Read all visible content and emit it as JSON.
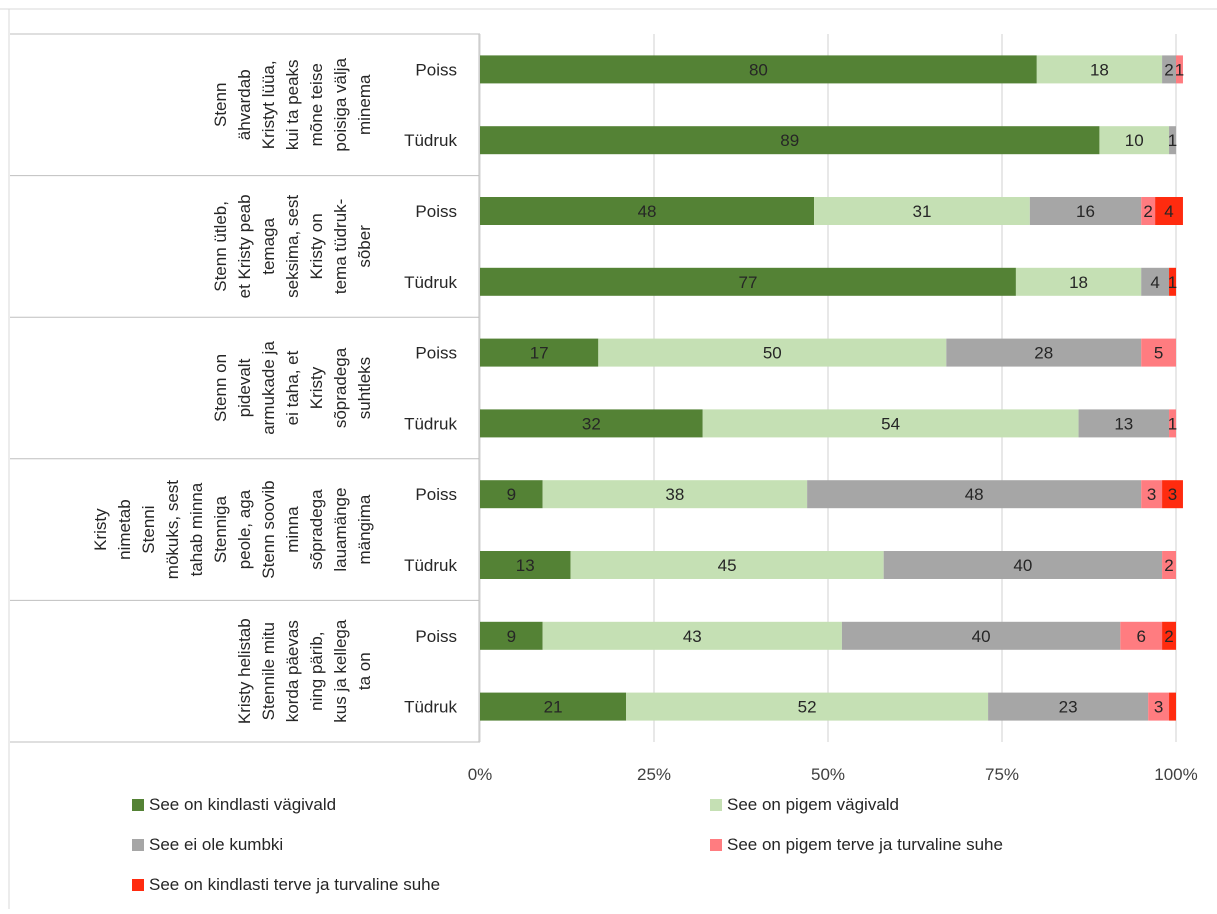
{
  "chart_data": {
    "type": "bar",
    "orientation": "horizontal",
    "stacked": "percent",
    "grid": true,
    "legend_position": "bottom",
    "xlim": [
      0,
      100
    ],
    "x_ticks": [
      "0%",
      "25%",
      "50%",
      "75%",
      "100%"
    ],
    "groups": [
      {
        "label_lines": [
          "Stenn",
          "ähvardab",
          "Kristyt lüüa,",
          "kui ta peaks",
          "mõne teise",
          "poisiga välja",
          "minema"
        ],
        "rows": [
          {
            "category": "Poiss",
            "values": [
              80,
              18,
              2,
              1,
              0
            ]
          },
          {
            "category": "Tüdruk",
            "values": [
              89,
              10,
              1,
              0,
              0
            ]
          }
        ]
      },
      {
        "label_lines": [
          "Stenn ütleb,",
          "et Kristy peab",
          "temaga",
          "seksima, sest",
          "Kristy on",
          "tema tüdruk-",
          "sõber"
        ],
        "rows": [
          {
            "category": "Poiss",
            "values": [
              48,
              31,
              16,
              2,
              4
            ]
          },
          {
            "category": "Tüdruk",
            "values": [
              77,
              18,
              4,
              0,
              1
            ]
          }
        ]
      },
      {
        "label_lines": [
          "Stenn on",
          "pidevalt",
          "armukade ja",
          "ei taha, et",
          "Kristy",
          "sõpradega",
          "suhtleks"
        ],
        "rows": [
          {
            "category": "Poiss",
            "values": [
              17,
              50,
              28,
              5,
              0
            ]
          },
          {
            "category": "Tüdruk",
            "values": [
              32,
              54,
              13,
              1,
              0
            ]
          }
        ]
      },
      {
        "label_lines": [
          "Kristy",
          "nimetab",
          "Stenni",
          "mökuks, sest",
          "tahab minna",
          "Stenniga",
          "peole, aga",
          "Stenn soovib",
          "minna",
          "sõpradega",
          "lauamänge",
          "mängima"
        ],
        "rows": [
          {
            "category": "Poiss",
            "values": [
              9,
              38,
              48,
              3,
              3
            ]
          },
          {
            "category": "Tüdruk",
            "values": [
              13,
              45,
              40,
              2,
              0
            ]
          }
        ]
      },
      {
        "label_lines": [
          "Kristy helistab",
          "Stennile mitu",
          "korda päevas",
          "ning pärib,",
          "kus ja kellega",
          "ta on"
        ],
        "rows": [
          {
            "category": "Poiss",
            "values": [
              9,
              43,
              40,
              6,
              2
            ]
          },
          {
            "category": "Tüdruk",
            "values": [
              21,
              52,
              23,
              3,
              1
            ]
          }
        ]
      }
    ],
    "series": [
      {
        "name": "See on kindlasti vägivald",
        "color": "#548235"
      },
      {
        "name": "See on pigem vägivald",
        "color": "#c5e0b4"
      },
      {
        "name": "See ei ole kumbki",
        "color": "#a6a6a6"
      },
      {
        "name": "See on pigem terve ja turvaline suhe",
        "color": "#ff7c80"
      },
      {
        "name": "See on kindlasti terve ja turvaline suhe",
        "color": "#ff2b0f"
      }
    ],
    "data_labels": [
      [
        [
          "80",
          "18",
          "2",
          "1",
          ""
        ],
        [
          "89",
          "10",
          "1",
          "",
          ""
        ]
      ],
      [
        [
          "48",
          "31",
          "16",
          "2",
          "4"
        ],
        [
          "77",
          "18",
          "4",
          "",
          "1"
        ]
      ],
      [
        [
          "17",
          "50",
          "28",
          "5",
          ""
        ],
        [
          "32",
          "54",
          "13",
          "1",
          ""
        ]
      ],
      [
        [
          "9",
          "38",
          "48",
          "3",
          "3"
        ],
        [
          "13",
          "45",
          "40",
          "2",
          ""
        ]
      ],
      [
        [
          "9",
          "43",
          "40",
          "6",
          "2"
        ],
        [
          "21",
          "52",
          "23",
          "3",
          ""
        ]
      ]
    ]
  }
}
